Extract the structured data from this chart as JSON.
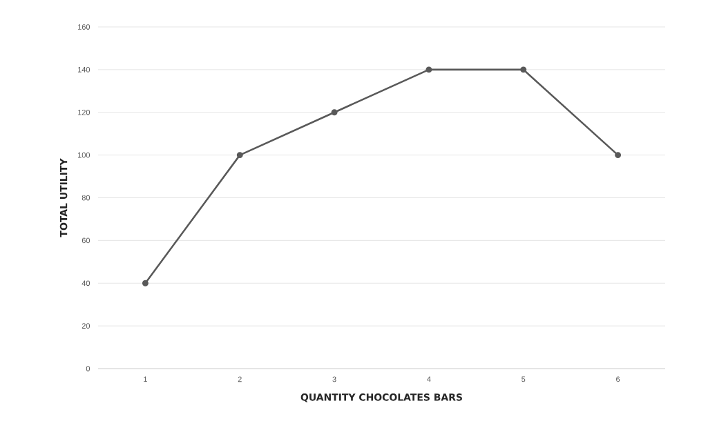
{
  "chart_data": {
    "type": "line",
    "xlabel": "QUANTITY CHOCOLATES BARS",
    "ylabel": "TOTAL UTILITY",
    "categories": [
      "1",
      "2",
      "3",
      "4",
      "5",
      "6"
    ],
    "series": [
      {
        "color": "#595959",
        "values": [
          40,
          100,
          120,
          140,
          140,
          100
        ]
      }
    ],
    "ylim": [
      0,
      160
    ],
    "yticks": [
      0,
      20,
      40,
      60,
      80,
      100,
      120,
      140,
      160
    ],
    "grid": "y",
    "marker": "circle",
    "line_style": "solid"
  }
}
